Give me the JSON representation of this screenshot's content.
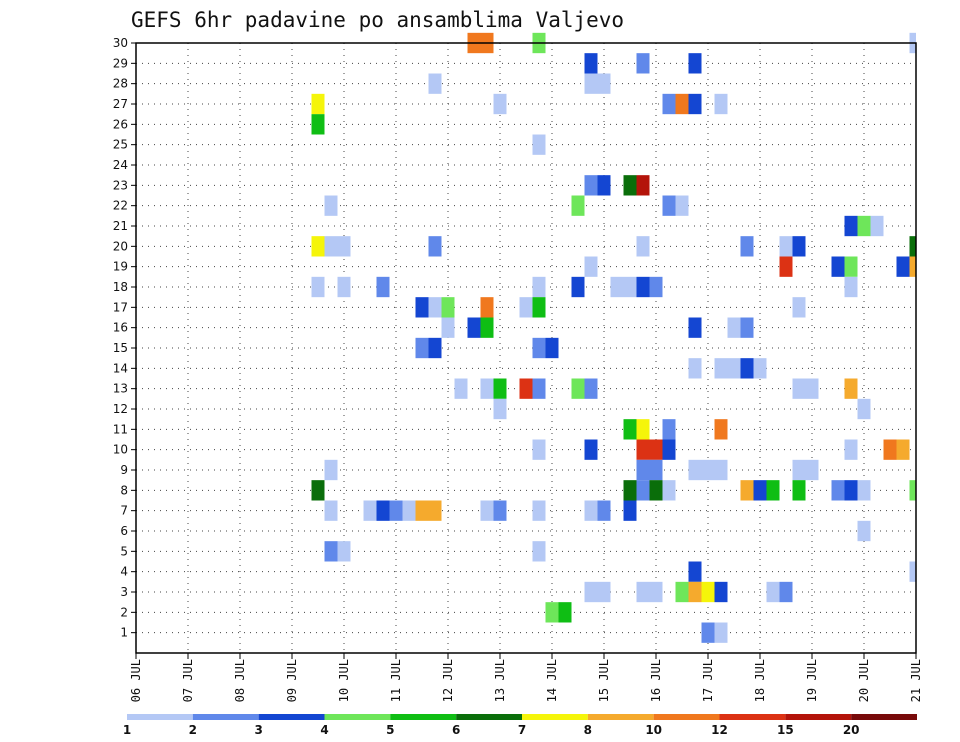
{
  "chart_data": {
    "type": "heatmap",
    "title": "GEFS 6hr padavine po ansamblima Valjevo",
    "xlabel": "",
    "ylabel": "",
    "x_range": [
      6,
      21
    ],
    "x_tick_labels": [
      "06 JUL",
      "07 JUL",
      "08 JUL",
      "09 JUL",
      "10 JUL",
      "11 JUL",
      "12 JUL",
      "13 JUL",
      "14 JUL",
      "15 JUL",
      "16 JUL",
      "17 JUL",
      "18 JUL",
      "19 JUL",
      "20 JUL",
      "21 JUL"
    ],
    "y_range": [
      0,
      30
    ],
    "y_ticks": [
      1,
      2,
      3,
      4,
      5,
      6,
      7,
      8,
      9,
      10,
      11,
      12,
      13,
      14,
      15,
      16,
      17,
      18,
      19,
      20,
      21,
      22,
      23,
      24,
      25,
      26,
      27,
      28,
      29,
      30
    ],
    "grid": true,
    "legend": {
      "placement": "bottom",
      "bins": [
        {
          "label": "1",
          "color": "#b4c8f5"
        },
        {
          "label": "2",
          "color": "#6088ea"
        },
        {
          "label": "3",
          "color": "#1446d2"
        },
        {
          "label": "4",
          "color": "#6ee65a"
        },
        {
          "label": "5",
          "color": "#0fbe14"
        },
        {
          "label": "6",
          "color": "#0a6e0a"
        },
        {
          "label": "7",
          "color": "#f5f50a"
        },
        {
          "label": "8",
          "color": "#f5aa2d"
        },
        {
          "label": "10",
          "color": "#f0781e"
        },
        {
          "label": "12",
          "color": "#dc3214"
        },
        {
          "label": "15",
          "color": "#b4140a"
        },
        {
          "label": "20",
          "color": "#780a0a"
        }
      ]
    },
    "cells": [
      [
        30,
        12.5,
        10
      ],
      [
        30,
        12.75,
        10
      ],
      [
        30,
        13.75,
        4
      ],
      [
        30,
        21,
        1
      ],
      [
        29,
        14.75,
        3
      ],
      [
        29,
        15.75,
        2
      ],
      [
        29,
        16.75,
        3
      ],
      [
        28,
        11.75,
        1
      ],
      [
        28,
        14.75,
        1
      ],
      [
        28,
        15,
        1
      ],
      [
        27,
        9.5,
        7
      ],
      [
        27,
        13,
        1
      ],
      [
        27,
        16.25,
        2
      ],
      [
        27,
        16.5,
        10
      ],
      [
        27,
        16.75,
        3
      ],
      [
        27,
        17.25,
        1
      ],
      [
        26,
        9.5,
        5
      ],
      [
        25,
        13.75,
        1
      ],
      [
        23,
        14.75,
        2
      ],
      [
        23,
        15,
        3
      ],
      [
        23,
        15.5,
        6
      ],
      [
        23,
        15.75,
        15
      ],
      [
        22,
        9.75,
        1
      ],
      [
        22,
        14.5,
        4
      ],
      [
        22,
        16.25,
        2
      ],
      [
        22,
        16.5,
        1
      ],
      [
        21,
        19.75,
        3
      ],
      [
        21,
        20,
        4
      ],
      [
        21,
        20.25,
        1
      ],
      [
        20,
        9.5,
        7
      ],
      [
        20,
        9.75,
        1
      ],
      [
        20,
        10,
        1
      ],
      [
        20,
        11.75,
        2
      ],
      [
        20,
        15.75,
        1
      ],
      [
        20,
        17.75,
        2
      ],
      [
        20,
        18.5,
        1
      ],
      [
        20,
        18.75,
        3
      ],
      [
        20,
        21,
        6
      ],
      [
        19,
        14.75,
        1
      ],
      [
        19,
        18.5,
        12
      ],
      [
        19,
        19.5,
        3
      ],
      [
        19,
        19.75,
        4
      ],
      [
        19,
        20.75,
        3
      ],
      [
        19,
        21,
        8
      ],
      [
        18,
        9.5,
        1
      ],
      [
        18,
        10,
        1
      ],
      [
        18,
        10.75,
        2
      ],
      [
        18,
        13.75,
        1
      ],
      [
        18,
        14.5,
        3
      ],
      [
        18,
        15.25,
        1
      ],
      [
        18,
        15.5,
        1
      ],
      [
        18,
        15.75,
        3
      ],
      [
        18,
        16,
        2
      ],
      [
        18,
        19.75,
        1
      ],
      [
        17,
        11.5,
        3
      ],
      [
        17,
        11.75,
        1
      ],
      [
        17,
        12,
        4
      ],
      [
        17,
        12.75,
        10
      ],
      [
        17,
        13.5,
        1
      ],
      [
        17,
        13.75,
        5
      ],
      [
        17,
        18.75,
        1
      ],
      [
        16,
        12,
        1
      ],
      [
        16,
        12.5,
        3
      ],
      [
        16,
        12.75,
        5
      ],
      [
        16,
        16.75,
        3
      ],
      [
        16,
        17.5,
        1
      ],
      [
        16,
        17.75,
        2
      ],
      [
        15,
        11.5,
        2
      ],
      [
        15,
        11.75,
        3
      ],
      [
        15,
        13.75,
        2
      ],
      [
        15,
        14,
        3
      ],
      [
        14,
        16.75,
        1
      ],
      [
        14,
        17.25,
        1
      ],
      [
        14,
        17.5,
        1
      ],
      [
        14,
        17.75,
        3
      ],
      [
        14,
        18,
        1
      ],
      [
        13,
        12.25,
        1
      ],
      [
        13,
        12.75,
        1
      ],
      [
        13,
        13,
        5
      ],
      [
        13,
        13.5,
        12
      ],
      [
        13,
        13.75,
        2
      ],
      [
        13,
        14.5,
        4
      ],
      [
        13,
        14.75,
        2
      ],
      [
        13,
        18.75,
        1
      ],
      [
        13,
        19,
        1
      ],
      [
        13,
        19.75,
        8
      ],
      [
        12,
        13,
        1
      ],
      [
        12,
        20,
        1
      ],
      [
        11,
        15.5,
        5
      ],
      [
        11,
        15.75,
        7
      ],
      [
        11,
        16.25,
        2
      ],
      [
        11,
        17.25,
        10
      ],
      [
        10,
        13.75,
        1
      ],
      [
        10,
        14.75,
        3
      ],
      [
        10,
        15.75,
        12
      ],
      [
        10,
        16,
        12
      ],
      [
        10,
        16.25,
        3
      ],
      [
        10,
        19.75,
        1
      ],
      [
        10,
        20.5,
        10
      ],
      [
        10,
        20.75,
        8
      ],
      [
        9,
        9.75,
        1
      ],
      [
        9,
        15.75,
        2
      ],
      [
        9,
        16,
        2
      ],
      [
        9,
        16.75,
        1
      ],
      [
        9,
        17,
        1
      ],
      [
        9,
        17.25,
        1
      ],
      [
        9,
        18.75,
        1
      ],
      [
        9,
        19,
        1
      ],
      [
        8,
        9.5,
        6
      ],
      [
        8,
        15.5,
        6
      ],
      [
        8,
        15.75,
        2
      ],
      [
        8,
        16,
        6
      ],
      [
        8,
        16.25,
        1
      ],
      [
        8,
        17.75,
        8
      ],
      [
        8,
        18,
        3
      ],
      [
        8,
        18.25,
        5
      ],
      [
        8,
        18.75,
        5
      ],
      [
        8,
        19.5,
        2
      ],
      [
        8,
        19.75,
        3
      ],
      [
        8,
        20,
        1
      ],
      [
        8,
        21,
        4
      ],
      [
        7,
        9.75,
        1
      ],
      [
        7,
        10.5,
        1
      ],
      [
        7,
        10.75,
        3
      ],
      [
        7,
        11,
        2
      ],
      [
        7,
        11.25,
        1
      ],
      [
        7,
        11.5,
        8
      ],
      [
        7,
        11.75,
        8
      ],
      [
        7,
        12.75,
        1
      ],
      [
        7,
        13,
        2
      ],
      [
        7,
        13.75,
        1
      ],
      [
        7,
        14.75,
        1
      ],
      [
        7,
        15,
        2
      ],
      [
        7,
        15.5,
        3
      ],
      [
        6,
        20,
        1
      ],
      [
        5,
        9.75,
        2
      ],
      [
        5,
        10,
        1
      ],
      [
        5,
        13.75,
        1
      ],
      [
        4,
        16.75,
        3
      ],
      [
        4,
        21,
        1
      ],
      [
        3,
        14.75,
        1
      ],
      [
        3,
        15,
        1
      ],
      [
        3,
        15.75,
        1
      ],
      [
        3,
        16,
        1
      ],
      [
        3,
        16.5,
        4
      ],
      [
        3,
        16.75,
        8
      ],
      [
        3,
        17,
        7
      ],
      [
        3,
        17.25,
        3
      ],
      [
        3,
        18.25,
        1
      ],
      [
        3,
        18.5,
        2
      ],
      [
        2,
        14,
        4
      ],
      [
        2,
        14.25,
        5
      ],
      [
        1,
        17,
        2
      ],
      [
        1,
        17.25,
        1
      ]
    ]
  }
}
